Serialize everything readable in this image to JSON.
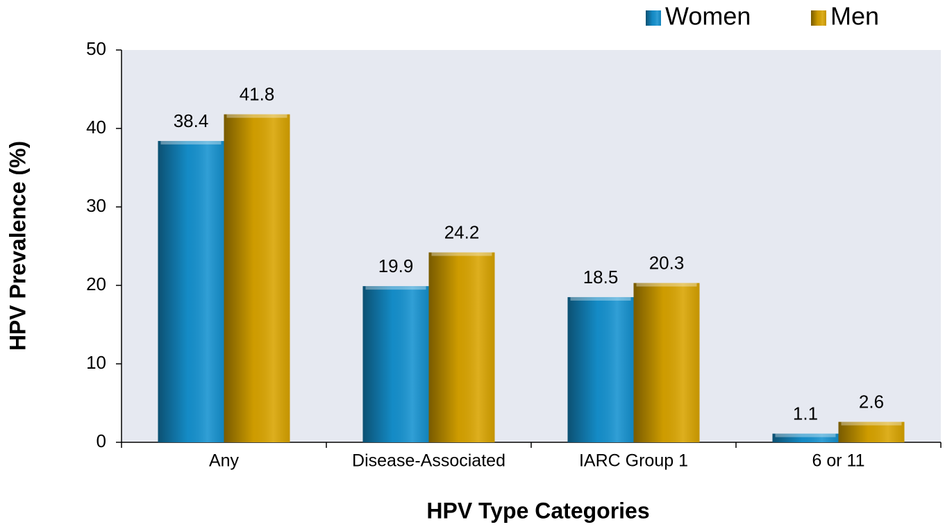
{
  "chart_data": {
    "type": "bar",
    "categories": [
      "Any",
      "Disease-Associated",
      "IARC Group 1",
      "6 or 11"
    ],
    "series": [
      {
        "name": "Women",
        "color": "#1592d0",
        "values": [
          38.4,
          19.9,
          18.5,
          1.1
        ]
      },
      {
        "name": "Men",
        "color": "#d9a400",
        "values": [
          41.8,
          24.2,
          20.3,
          2.6
        ]
      }
    ],
    "xlabel": "HPV Type Categories",
    "ylabel": "HPV Prevalence (%)",
    "ylim": [
      0,
      50
    ],
    "yticks": [
      0,
      10,
      20,
      30,
      40,
      50
    ],
    "grid": false,
    "legend": "top-right"
  }
}
